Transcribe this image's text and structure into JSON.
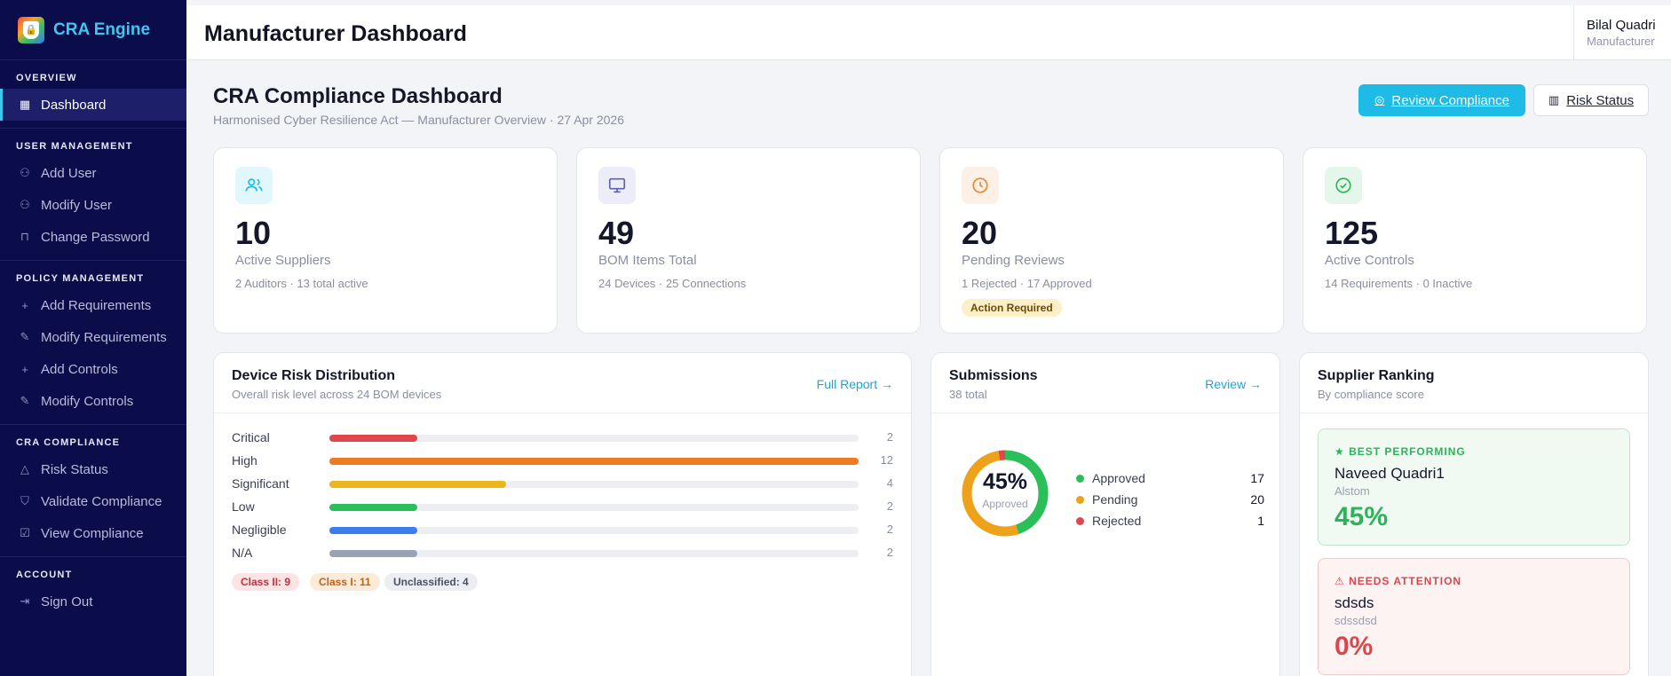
{
  "app": {
    "name": "CRA Engine"
  },
  "header": {
    "title": "Manufacturer Dashboard"
  },
  "user": {
    "name": "Bilal Quadri",
    "role": "Manufacturer"
  },
  "sidebar": {
    "sections": [
      {
        "title": "OVERVIEW",
        "items": [
          {
            "label": "Dashboard",
            "icon": "grid-icon"
          }
        ]
      },
      {
        "title": "USER MANAGEMENT",
        "items": [
          {
            "label": "Add User",
            "icon": "user-plus-icon"
          },
          {
            "label": "Modify User",
            "icon": "user-edit-icon"
          },
          {
            "label": "Change Password",
            "icon": "lock-icon"
          }
        ]
      },
      {
        "title": "POLICY MANAGEMENT",
        "items": [
          {
            "label": "Add Requirements",
            "icon": "plus-icon"
          },
          {
            "label": "Modify Requirements",
            "icon": "pencil-icon"
          },
          {
            "label": "Add Controls",
            "icon": "plus-icon"
          },
          {
            "label": "Modify Controls",
            "icon": "pencil-icon"
          }
        ]
      },
      {
        "title": "CRA COMPLIANCE",
        "items": [
          {
            "label": "Risk Status",
            "icon": "warning-icon"
          },
          {
            "label": "Validate Compliance",
            "icon": "shield-check-icon"
          },
          {
            "label": "View Compliance",
            "icon": "checkbox-icon"
          }
        ]
      },
      {
        "title": "ACCOUNT",
        "items": [
          {
            "label": "Sign Out",
            "icon": "sign-out-icon"
          }
        ]
      }
    ]
  },
  "page": {
    "title": "CRA Compliance Dashboard",
    "subtitle": "Harmonised Cyber Resilience Act — Manufacturer Overview",
    "date": "27 Apr 2026",
    "primary_button": "Review Compliance",
    "secondary_button": "Risk Status"
  },
  "stats": [
    {
      "value": "10",
      "label": "Active Suppliers",
      "meta_a": "2 Auditors",
      "meta_b": "13 total active",
      "icon": "users-icon",
      "icon_color": "#1dbbe6",
      "icon_bg": "#e2f7fc"
    },
    {
      "value": "49",
      "label": "BOM Items Total",
      "meta_a": "24 Devices",
      "meta_b": "25 Connections",
      "icon": "monitor-icon",
      "icon_color": "#5b5fb8",
      "icon_bg": "#ecedf8"
    },
    {
      "value": "20",
      "label": "Pending Reviews",
      "meta_a": "1 Rejected",
      "meta_b": "17 Approved",
      "icon": "clock-icon",
      "icon_color": "#e5883a",
      "icon_bg": "#fdf0e4",
      "badge": "Action Required"
    },
    {
      "value": "125",
      "label": "Active Controls",
      "meta_a": "14 Requirements",
      "meta_b": "0 Inactive",
      "icon": "check-circle-icon",
      "icon_color": "#2bb45a",
      "icon_bg": "#e5f7ea"
    }
  ],
  "risk": {
    "title": "Device Risk Distribution",
    "subtitle": "Overall risk level across 24 BOM devices",
    "link": "Full Report →",
    "max": 12,
    "rows": [
      {
        "label": "Critical",
        "value": 2,
        "color": "#e0474c"
      },
      {
        "label": "High",
        "value": 12,
        "color": "#ee7a22"
      },
      {
        "label": "Significant",
        "value": 4,
        "color": "#eab61c"
      },
      {
        "label": "Low",
        "value": 2,
        "color": "#2bbf5a"
      },
      {
        "label": "Negligible",
        "value": 2,
        "color": "#3b7ded"
      },
      {
        "label": "N/A",
        "value": 2,
        "color": "#9aa3b5"
      }
    ],
    "tags": [
      {
        "label": "Class II: 9",
        "color": "#c0323a",
        "bg": "#fde3e3"
      },
      {
        "label": "Class I: 11",
        "color": "#c0611a",
        "bg": "#fdebd9"
      },
      {
        "label": "Unclassified: 4",
        "color": "#4b5064",
        "bg": "#eceef3"
      }
    ]
  },
  "submissions": {
    "title": "Submissions",
    "subtitle": "38 total",
    "link": "Review →",
    "center_value": "45%",
    "center_label": "Approved",
    "items": [
      {
        "label": "Approved",
        "value": 17,
        "color": "#2bbf5a"
      },
      {
        "label": "Pending",
        "value": 20,
        "color": "#eea21a"
      },
      {
        "label": "Rejected",
        "value": 1,
        "color": "#e0474c"
      }
    ]
  },
  "ranking": {
    "title": "Supplier Ranking",
    "subtitle": "By compliance score",
    "best": {
      "tag": "★ BEST PERFORMING",
      "name": "Naveed Quadri1",
      "company": "Alstom",
      "score": "45%"
    },
    "worst": {
      "tag": "⚠ NEEDS ATTENTION",
      "name": "sdsds",
      "company": "sdssdsd",
      "score": "0%"
    }
  },
  "colors": {
    "sidebar_bg": "#0b0d4a",
    "accent": "#1dbbe6",
    "good": "#2bb45a",
    "bad": "#e0474c"
  }
}
